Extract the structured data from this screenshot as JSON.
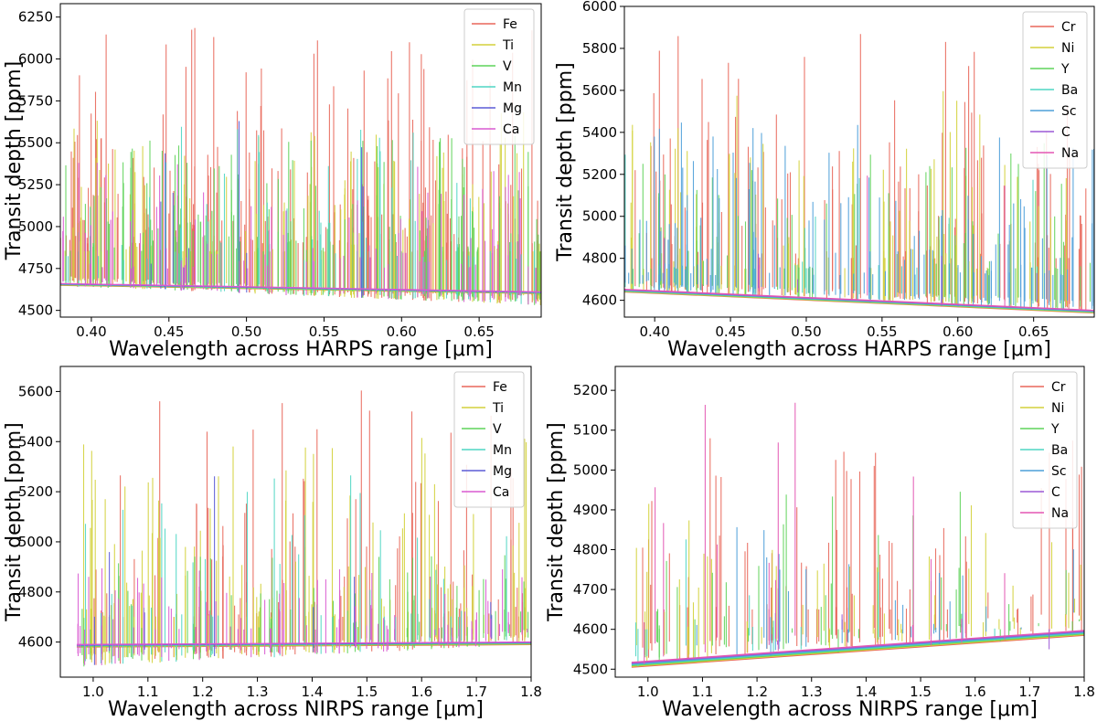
{
  "chart_data": [
    {
      "type": "line",
      "panel": "top-left",
      "xlabel": "Wavelength across HARPS range [μm]",
      "ylabel": "Transit depth [ppm]",
      "xlim": [
        0.38,
        0.69
      ],
      "ylim": [
        4460,
        6330
      ],
      "xticks": [
        0.4,
        0.45,
        0.5,
        0.55,
        0.6,
        0.65
      ],
      "xtick_labels": [
        "0.40",
        "0.45",
        "0.50",
        "0.55",
        "0.60",
        "0.65"
      ],
      "yticks": [
        4500,
        4750,
        5000,
        5250,
        5500,
        5750,
        6000,
        6250
      ],
      "ytick_labels": [
        "4500",
        "4750",
        "5000",
        "5250",
        "5500",
        "5750",
        "6000",
        "6250"
      ],
      "legend_position": "top-right",
      "baseline": {
        "x": [
          0.38,
          0.69
        ],
        "y": [
          4650,
          4600
        ]
      },
      "floor": {
        "x": [
          0.38,
          0.69
        ],
        "y": [
          4645,
          4530
        ]
      },
      "series": [
        {
          "name": "Fe",
          "color": "#e8675a",
          "peaks": {
            "count": 170,
            "min": 4900,
            "max": 6200,
            "seed": 11
          }
        },
        {
          "name": "Ti",
          "color": "#d3d13b",
          "peaks": {
            "count": 140,
            "min": 4850,
            "max": 5700,
            "seed": 23
          }
        },
        {
          "name": "V",
          "color": "#5fd35a",
          "peaks": {
            "count": 150,
            "min": 4850,
            "max": 5550,
            "seed": 37
          }
        },
        {
          "name": "Mn",
          "color": "#4fd6c4",
          "peaks": {
            "count": 60,
            "min": 4800,
            "max": 5600,
            "seed": 41
          }
        },
        {
          "name": "Mg",
          "color": "#5b5bd6",
          "peaks": {
            "count": 10,
            "min": 4750,
            "max": 5800,
            "seed": 53
          }
        },
        {
          "name": "Ca",
          "color": "#d95ad1",
          "peaks": {
            "count": 90,
            "min": 4750,
            "max": 5400,
            "seed": 67
          }
        }
      ]
    },
    {
      "type": "line",
      "panel": "top-right",
      "xlabel": "Wavelength across HARPS range [μm]",
      "ylabel": "Transit depth [ppm]",
      "xlim": [
        0.38,
        0.69
      ],
      "ylim": [
        4520,
        6000
      ],
      "xticks": [
        0.4,
        0.45,
        0.5,
        0.55,
        0.6,
        0.65
      ],
      "xtick_labels": [
        "0.40",
        "0.45",
        "0.50",
        "0.55",
        "0.60",
        "0.65"
      ],
      "yticks": [
        4600,
        4800,
        5000,
        5200,
        5400,
        5600,
        5800,
        6000
      ],
      "ytick_labels": [
        "4600",
        "4800",
        "5000",
        "5200",
        "5400",
        "5600",
        "5800",
        "6000"
      ],
      "legend_position": "top-right",
      "baseline": {
        "x": [
          0.38,
          0.69
        ],
        "y": [
          4640,
          4540
        ]
      },
      "floor": {
        "x": [
          0.38,
          0.69
        ],
        "y": [
          4640,
          4540
        ]
      },
      "series": [
        {
          "name": "Cr",
          "color": "#e8675a",
          "peaks": {
            "count": 110,
            "min": 4800,
            "max": 5900,
            "seed": 71
          }
        },
        {
          "name": "Ni",
          "color": "#d3d13b",
          "peaks": {
            "count": 90,
            "min": 4750,
            "max": 5600,
            "seed": 83
          }
        },
        {
          "name": "Y",
          "color": "#5fd35a",
          "peaks": {
            "count": 70,
            "min": 4750,
            "max": 5350,
            "seed": 97
          }
        },
        {
          "name": "Ba",
          "color": "#4fd6c4",
          "peaks": {
            "count": 20,
            "min": 4750,
            "max": 5300,
            "seed": 101
          }
        },
        {
          "name": "Sc",
          "color": "#4d9fd9",
          "peaks": {
            "count": 120,
            "min": 4720,
            "max": 5450,
            "seed": 113
          }
        },
        {
          "name": "C",
          "color": "#9b59d6",
          "peaks": {
            "count": 5,
            "min": 4700,
            "max": 4900,
            "seed": 127
          }
        },
        {
          "name": "Na",
          "color": "#e356b3",
          "peaks": {
            "count": 3,
            "min": 4750,
            "max": 5750,
            "seed": 131
          }
        }
      ]
    },
    {
      "type": "line",
      "panel": "bottom-left",
      "xlabel": "Wavelength across NIRPS range [μm]",
      "ylabel": "Transit depth [ppm]",
      "xlim": [
        0.94,
        1.8
      ],
      "ylim": [
        4460,
        5700
      ],
      "xticks": [
        1.0,
        1.1,
        1.2,
        1.3,
        1.4,
        1.5,
        1.6,
        1.7,
        1.8
      ],
      "xtick_labels": [
        "1.0",
        "1.1",
        "1.2",
        "1.3",
        "1.4",
        "1.5",
        "1.6",
        "1.7",
        "1.8"
      ],
      "yticks": [
        4600,
        4800,
        5000,
        5200,
        5400,
        5600
      ],
      "ytick_labels": [
        "4600",
        "4800",
        "5000",
        "5200",
        "5400",
        "5600"
      ],
      "legend_position": "top-right",
      "baseline": {
        "x": [
          0.97,
          1.8
        ],
        "y": [
          4580,
          4590
        ]
      },
      "floor": {
        "x": [
          0.97,
          1.8
        ],
        "y": [
          4500,
          4590
        ]
      },
      "series": [
        {
          "name": "Fe",
          "color": "#e8675a",
          "peaks": {
            "count": 90,
            "min": 4700,
            "max": 5640,
            "seed": 137
          }
        },
        {
          "name": "Ti",
          "color": "#d3d13b",
          "peaks": {
            "count": 110,
            "min": 4700,
            "max": 5420,
            "seed": 149
          }
        },
        {
          "name": "V",
          "color": "#5fd35a",
          "peaks": {
            "count": 60,
            "min": 4650,
            "max": 4950,
            "seed": 151
          }
        },
        {
          "name": "Mn",
          "color": "#4fd6c4",
          "peaks": {
            "count": 40,
            "min": 4700,
            "max": 5300,
            "seed": 163
          }
        },
        {
          "name": "Mg",
          "color": "#5b5bd6",
          "peaks": {
            "count": 8,
            "min": 4700,
            "max": 5300,
            "seed": 173
          }
        },
        {
          "name": "Ca",
          "color": "#d95ad1",
          "peaks": {
            "count": 80,
            "min": 4650,
            "max": 4900,
            "seed": 181
          }
        }
      ]
    },
    {
      "type": "line",
      "panel": "bottom-right",
      "xlabel": "Wavelength across NIRPS range [μm]",
      "ylabel": "Transit depth [ppm]",
      "xlim": [
        0.94,
        1.8
      ],
      "ylim": [
        4480,
        5260
      ],
      "xticks": [
        1.0,
        1.1,
        1.2,
        1.3,
        1.4,
        1.5,
        1.6,
        1.7,
        1.8
      ],
      "xtick_labels": [
        "1.0",
        "1.1",
        "1.2",
        "1.3",
        "1.4",
        "1.5",
        "1.6",
        "1.7",
        "1.8"
      ],
      "yticks": [
        4500,
        4600,
        4700,
        4800,
        4900,
        5000,
        5100,
        5200
      ],
      "ytick_labels": [
        "4500",
        "4600",
        "4700",
        "4800",
        "4900",
        "5000",
        "5100",
        "5200"
      ],
      "legend_position": "top-right",
      "baseline": {
        "x": [
          0.97,
          1.8
        ],
        "y": [
          4505,
          4585
        ]
      },
      "floor": {
        "x": [
          0.97,
          1.8
        ],
        "y": [
          4505,
          4585
        ]
      },
      "series": [
        {
          "name": "Cr",
          "color": "#e8675a",
          "peaks": {
            "count": 70,
            "min": 4650,
            "max": 5080,
            "seed": 191
          }
        },
        {
          "name": "Ni",
          "color": "#d3d13b",
          "peaks": {
            "count": 50,
            "min": 4600,
            "max": 4940,
            "seed": 193
          }
        },
        {
          "name": "Y",
          "color": "#5fd35a",
          "peaks": {
            "count": 40,
            "min": 4600,
            "max": 4950,
            "seed": 197
          }
        },
        {
          "name": "Ba",
          "color": "#4fd6c4",
          "peaks": {
            "count": 10,
            "min": 4600,
            "max": 4850,
            "seed": 199
          }
        },
        {
          "name": "Sc",
          "color": "#4d9fd9",
          "peaks": {
            "count": 25,
            "min": 4600,
            "max": 4880,
            "seed": 211
          }
        },
        {
          "name": "C",
          "color": "#9b59d6",
          "peaks": {
            "count": 3,
            "min": 4550,
            "max": 4650,
            "seed": 223
          }
        },
        {
          "name": "Na",
          "color": "#e356b3",
          "peaks": {
            "count": 15,
            "min": 4600,
            "max": 5240,
            "seed": 227
          }
        }
      ]
    }
  ]
}
